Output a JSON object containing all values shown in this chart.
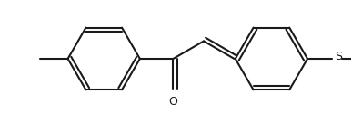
{
  "background_color": "#ffffff",
  "line_color": "#000000",
  "line_width": 1.5,
  "bond_color": "#1a1a1a",
  "figsize": [
    3.87,
    1.36
  ],
  "dpi": 100
}
